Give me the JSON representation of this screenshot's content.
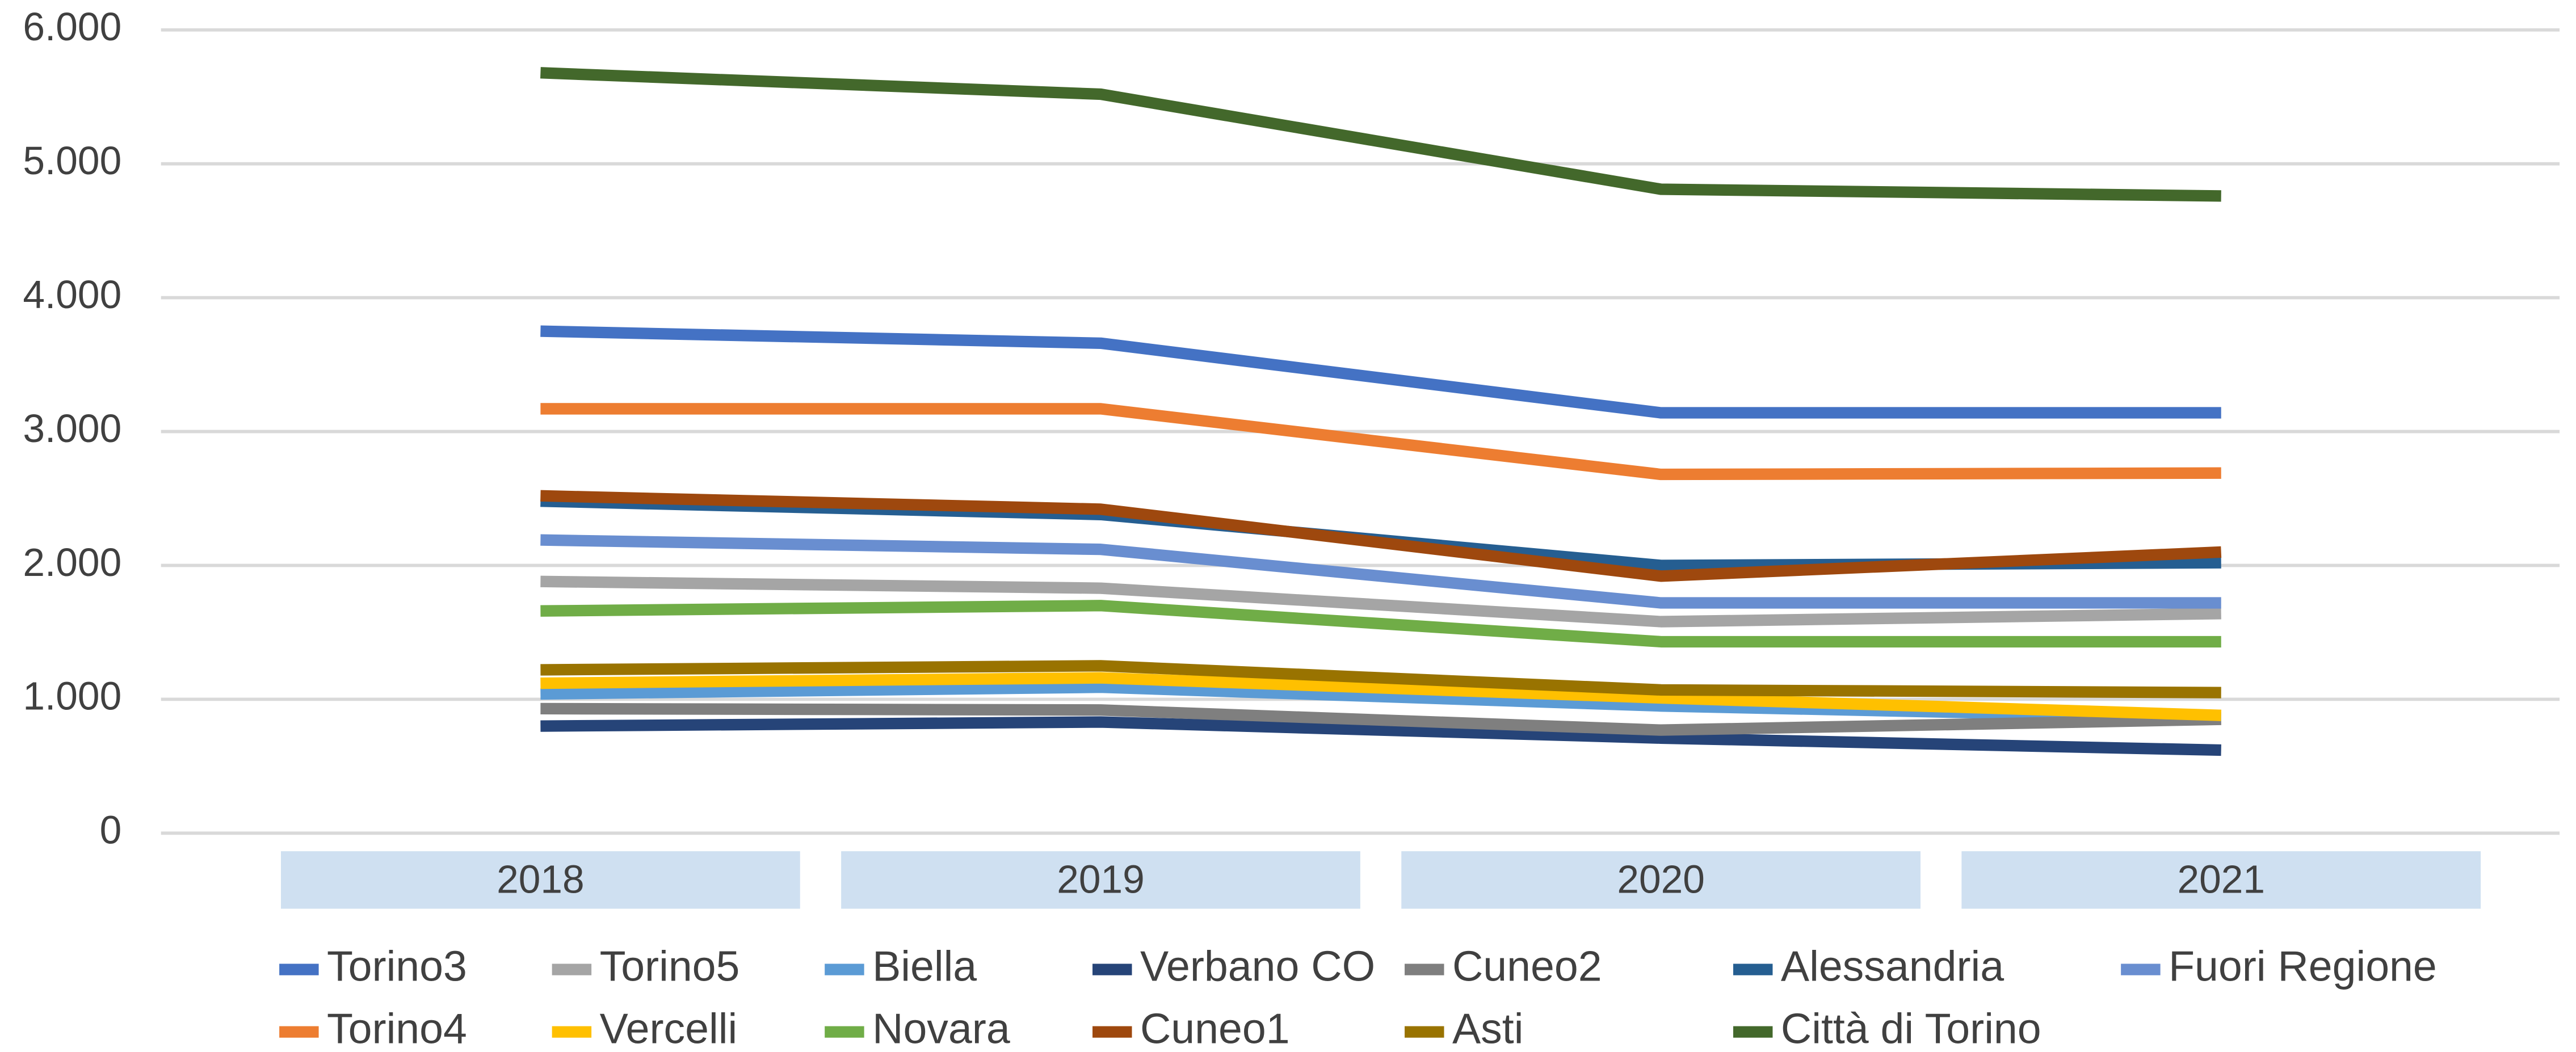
{
  "chart_data": {
    "type": "line",
    "categories": [
      "2018",
      "2019",
      "2020",
      "2021"
    ],
    "series": [
      {
        "name": "Torino3",
        "color": "#4472c4",
        "values": [
          3750,
          3660,
          3140,
          3140
        ]
      },
      {
        "name": "Torino5",
        "color": "#a5a5a5",
        "values": [
          1880,
          1830,
          1580,
          1640
        ]
      },
      {
        "name": "Biella",
        "color": "#5b9bd5",
        "values": [
          1040,
          1090,
          950,
          860
        ]
      },
      {
        "name": "Verbano CO",
        "color": "#264478",
        "values": [
          800,
          830,
          710,
          620
        ]
      },
      {
        "name": "Cuneo2",
        "color": "#7f7f7f",
        "values": [
          930,
          920,
          770,
          850
        ]
      },
      {
        "name": "Alessandria",
        "color": "#255e91",
        "values": [
          2480,
          2380,
          2000,
          2020
        ]
      },
      {
        "name": "Fuori Regione",
        "color": "#698ed0",
        "values": [
          2190,
          2120,
          1720,
          1720
        ]
      },
      {
        "name": "Torino4",
        "color": "#ed7d31",
        "values": [
          3170,
          3170,
          2680,
          2690
        ]
      },
      {
        "name": "Vercelli",
        "color": "#ffc000",
        "values": [
          1120,
          1160,
          1010,
          880
        ]
      },
      {
        "name": "Novara",
        "color": "#70ad47",
        "values": [
          1660,
          1700,
          1430,
          1430
        ]
      },
      {
        "name": "Cuneo1",
        "color": "#9e480e",
        "values": [
          2520,
          2420,
          1920,
          2100
        ]
      },
      {
        "name": "Asti",
        "color": "#997300",
        "values": [
          1220,
          1250,
          1070,
          1050
        ]
      },
      {
        "name": "Città di Torino",
        "color": "#43682b",
        "values": [
          5680,
          5520,
          4810,
          4760
        ]
      }
    ],
    "ylim": [
      0,
      6000
    ],
    "yticks": [
      0,
      {
        "value": 1000,
        "label": "1.000"
      },
      {
        "value": 2000,
        "label": "2.000"
      },
      {
        "value": 3000,
        "label": "3.000"
      },
      {
        "value": 4000,
        "label": "4.000"
      },
      {
        "value": 5000,
        "label": "5.000"
      },
      {
        "value": 6000,
        "label": "6.000"
      }
    ],
    "grid": true
  }
}
